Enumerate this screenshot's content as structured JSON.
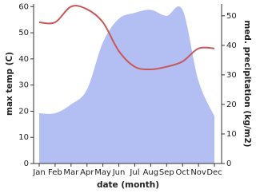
{
  "chart_data": {
    "type": "area-line",
    "x_label": "date (month)",
    "y_label": "max temp (C)",
    "y2_label": "med. precipitation (kg/m2)",
    "categories": [
      "Jan",
      "Feb",
      "Mar",
      "Apr",
      "May",
      "Jun",
      "Jul",
      "Aug",
      "Sep",
      "Oct",
      "Nov",
      "Dec"
    ],
    "ylim": [
      0,
      61
    ],
    "yticks": [
      0,
      10,
      20,
      30,
      40,
      50,
      60
    ],
    "y2lim": [
      0,
      54
    ],
    "y2ticks": [
      0,
      10,
      20,
      30,
      40,
      50
    ],
    "series": [
      {
        "name": "med. precipitation",
        "axis": "y2",
        "kind": "area",
        "color": "#b3bff2",
        "values": [
          17,
          17,
          20,
          25,
          41,
          49,
          51,
          52,
          50,
          52,
          28,
          16
        ]
      },
      {
        "name": "max temp",
        "axis": "y",
        "kind": "line",
        "color": "#c8575a",
        "values": [
          54,
          54,
          60,
          59,
          54,
          43,
          37,
          36,
          37,
          39,
          44,
          44
        ]
      }
    ]
  }
}
